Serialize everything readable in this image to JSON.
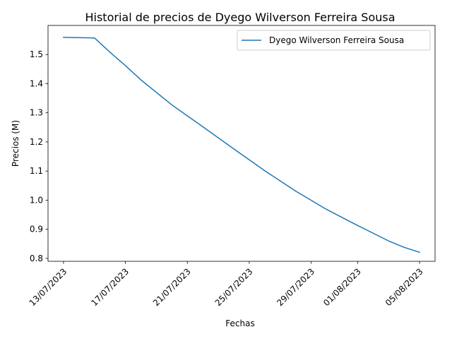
{
  "chart_data": {
    "type": "line",
    "title": "Historial de precios de Dyego Wilverson Ferreira Sousa",
    "xlabel": "Fechas",
    "ylabel": "Precios (M)",
    "xlim": [
      "2023-07-12",
      "2023-08-06"
    ],
    "ylim": [
      0.79,
      1.6
    ],
    "grid": false,
    "legend_position": "top-right",
    "x_ticks": [
      {
        "date": "2023-07-13",
        "label": "13/07/2023"
      },
      {
        "date": "2023-07-17",
        "label": "17/07/2023"
      },
      {
        "date": "2023-07-21",
        "label": "21/07/2023"
      },
      {
        "date": "2023-07-25",
        "label": "25/07/2023"
      },
      {
        "date": "2023-07-29",
        "label": "29/07/2023"
      },
      {
        "date": "2023-08-01",
        "label": "01/08/2023"
      },
      {
        "date": "2023-08-05",
        "label": "05/08/2023"
      }
    ],
    "y_ticks": [
      {
        "value": 0.8,
        "label": "0.8"
      },
      {
        "value": 0.9,
        "label": "0.9"
      },
      {
        "value": 1.0,
        "label": "1.0"
      },
      {
        "value": 1.1,
        "label": "1.1"
      },
      {
        "value": 1.2,
        "label": "1.2"
      },
      {
        "value": 1.3,
        "label": "1.3"
      },
      {
        "value": 1.4,
        "label": "1.4"
      },
      {
        "value": 1.5,
        "label": "1.5"
      }
    ],
    "series": [
      {
        "name": "Dyego Wilverson Ferreira Sousa",
        "color": "#1f77b4",
        "x": [
          "2023-07-13",
          "2023-07-15",
          "2023-07-16",
          "2023-07-17",
          "2023-07-18",
          "2023-07-20",
          "2023-07-22",
          "2023-07-24",
          "2023-07-26",
          "2023-07-28",
          "2023-07-30",
          "2023-08-01",
          "2023-08-03",
          "2023-08-04",
          "2023-08-05"
        ],
        "y": [
          1.559,
          1.557,
          1.508,
          1.462,
          1.413,
          1.327,
          1.252,
          1.176,
          1.101,
          1.031,
          0.968,
          0.913,
          0.86,
          0.838,
          0.821
        ]
      }
    ]
  }
}
